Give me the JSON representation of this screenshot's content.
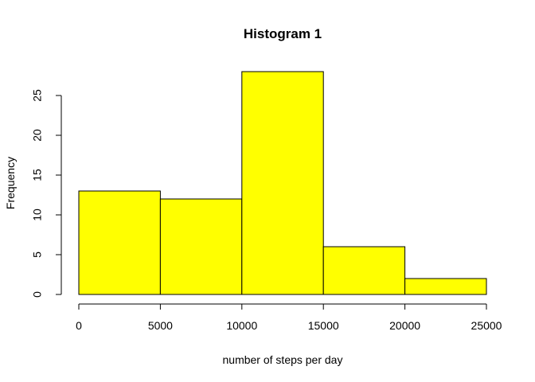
{
  "chart_data": {
    "type": "bar",
    "title": "Histogram 1",
    "xlabel": "number of steps per day",
    "ylabel": "Frequency",
    "bins": [
      {
        "from": 0,
        "to": 5000,
        "count": 13
      },
      {
        "from": 5000,
        "to": 10000,
        "count": 12
      },
      {
        "from": 10000,
        "to": 15000,
        "count": 28
      },
      {
        "from": 15000,
        "to": 20000,
        "count": 6
      },
      {
        "from": 20000,
        "to": 25000,
        "count": 2
      }
    ],
    "x_ticks": [
      0,
      5000,
      10000,
      15000,
      20000,
      25000
    ],
    "y_ticks": [
      0,
      5,
      10,
      15,
      20,
      25
    ],
    "xlim": [
      0,
      25000
    ],
    "ylim": [
      0,
      28
    ],
    "bar_color": "#ffff00",
    "grid": false
  }
}
